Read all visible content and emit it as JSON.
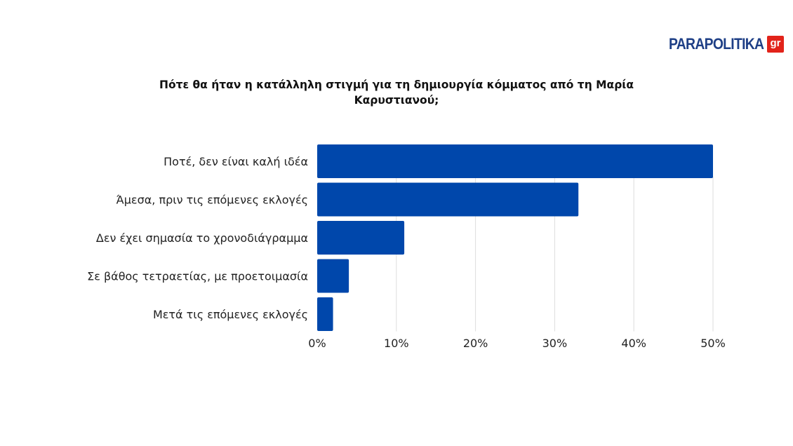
{
  "logo": {
    "text": "PARAPOLITIKA",
    "tld": "gr"
  },
  "colors": {
    "bar": "#0047ab",
    "grid": "#dddddd",
    "logo_blue": "#1e3f86",
    "logo_red": "#e2231a"
  },
  "chart_data": {
    "type": "bar",
    "orientation": "horizontal",
    "title": "Πότε θα ήταν η κατάλληλη στιγμή για τη δημιουργία κόμματος από τη Μαρία Καρυστιανού;",
    "categories": [
      "Ποτέ, δεν είναι καλή ιδέα",
      "Άμεσα, πριν τις επόμενες εκλογές",
      "Δεν έχει σημασία το χρονοδιάγραμμα",
      "Σε βάθος τετραετίας, με προετοιμασία",
      "Μετά τις επόμενες εκλογές"
    ],
    "values": [
      50,
      33,
      11,
      4,
      2
    ],
    "xlim": [
      0,
      50
    ],
    "ticks": [
      0,
      10,
      20,
      30,
      40,
      50
    ],
    "tick_labels": [
      "0%",
      "10%",
      "20%",
      "30%",
      "40%",
      "50%"
    ],
    "grid": true,
    "legend": "none"
  }
}
